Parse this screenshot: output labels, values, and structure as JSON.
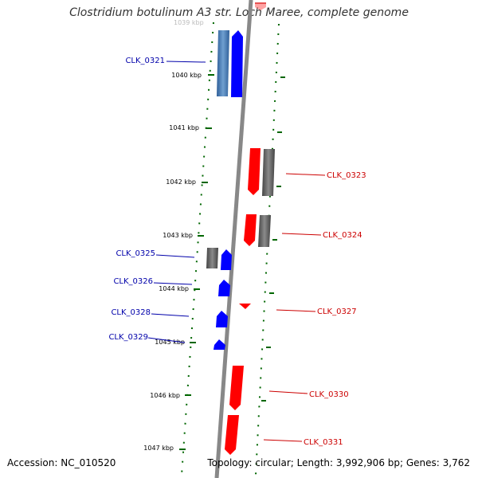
{
  "title": "Clostridium botulinum A3 str. Loch Maree, complete genome",
  "accession_text": "Accession: NC_010520",
  "topology_text": "Topology: circular; Length: 3,992,906 bp; Genes: 3,762",
  "clipped_label": "1039 kbp",
  "ticks": [
    "1040 kbp",
    "1041 kbp",
    "1042 kbp",
    "1043 kbp",
    "1044 kbp",
    "1045 kbp",
    "1046 kbp",
    "1047 kbp"
  ],
  "genes_left": [
    "CLK_0321",
    "CLK_0325",
    "CLK_0326",
    "CLK_0328",
    "CLK_0329"
  ],
  "genes_right": [
    "CLK_0323",
    "CLK_0324",
    "CLK_0327",
    "CLK_0330",
    "CLK_0331"
  ],
  "colors": {
    "forward_gene": "#0000ff",
    "reverse_gene": "#ff0000",
    "forward_label": "#0000aa",
    "reverse_label": "#cc0000",
    "other_feature": "#666666",
    "tick": "#006600",
    "backbone": "#888888"
  }
}
